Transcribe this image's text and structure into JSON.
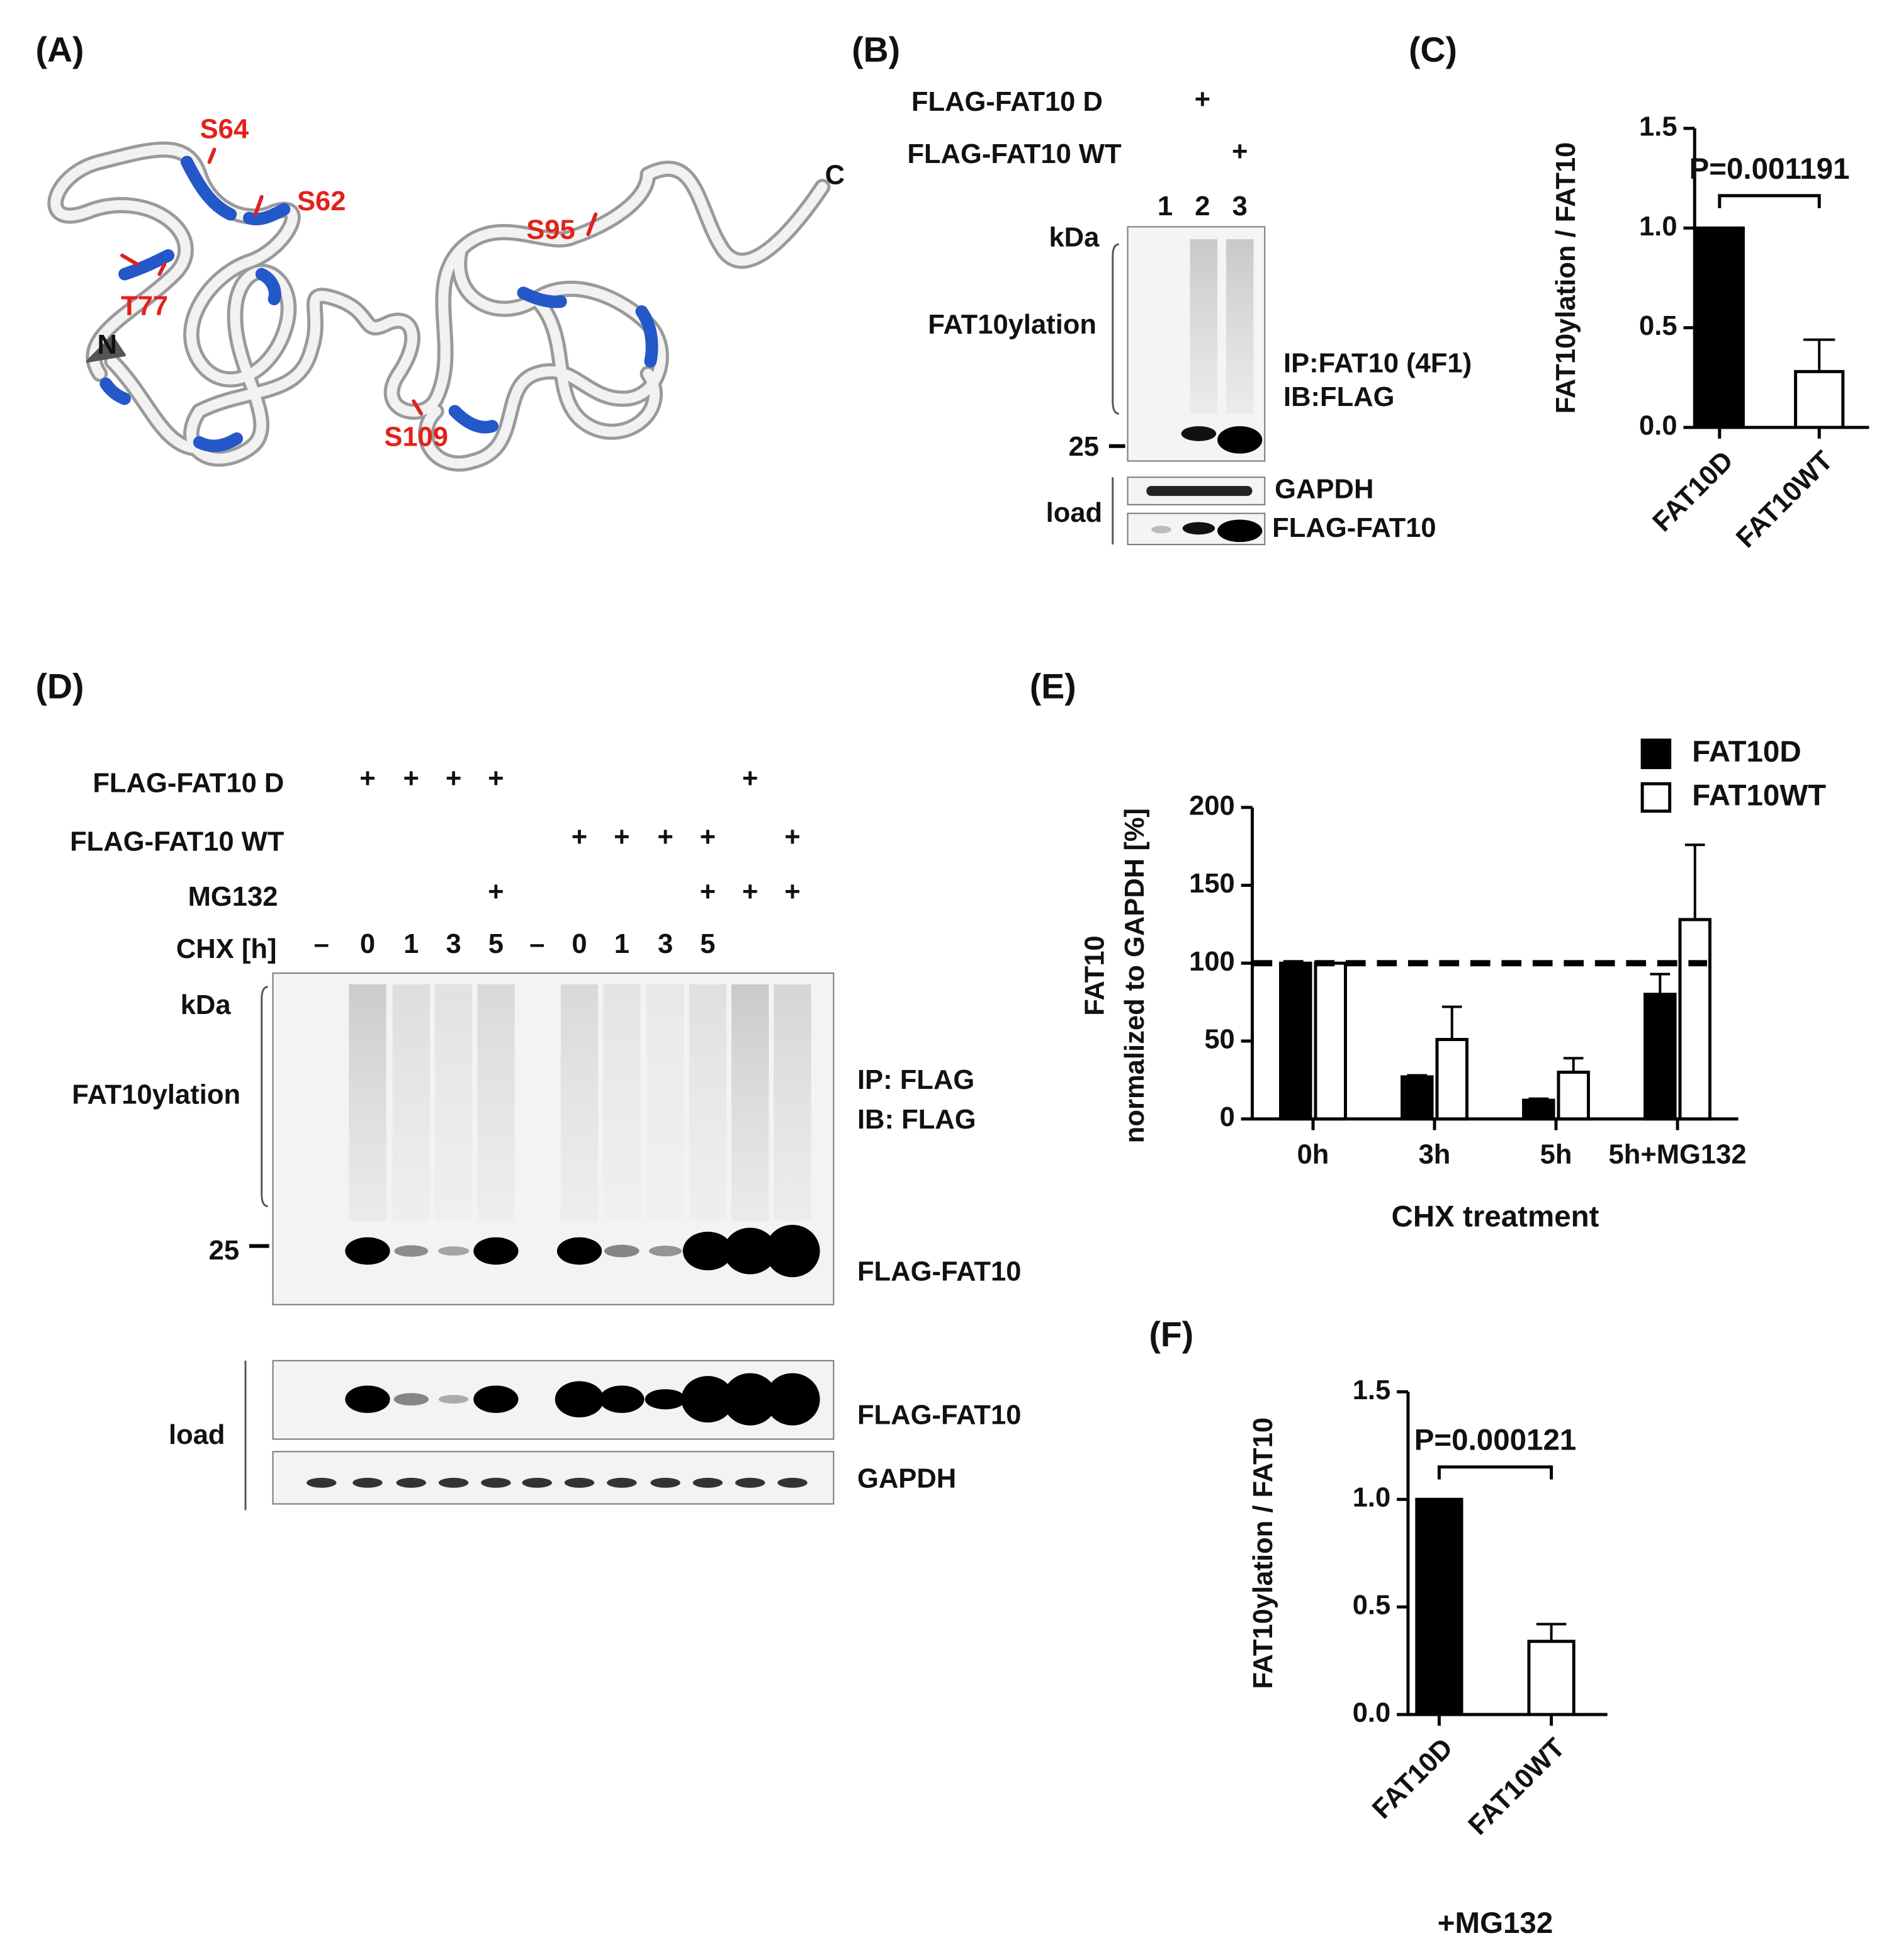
{
  "panel_labels": [
    "(A)",
    "(B)",
    "(C)",
    "(D)",
    "(E)",
    "(F)"
  ],
  "structure": {
    "residues": [
      "S64",
      "S62",
      "T77",
      "S95",
      "S109"
    ],
    "termini": [
      "N",
      "C"
    ]
  },
  "blot_b": {
    "rows": [
      {
        "label": "FLAG-FAT10 D",
        "marks": [
          null,
          "+",
          null
        ]
      },
      {
        "label": "FLAG-FAT10 WT",
        "marks": [
          null,
          null,
          "+"
        ]
      }
    ],
    "lanes": [
      "1",
      "2",
      "3"
    ],
    "kda": "kDa",
    "fat10ylation": "FAT10ylation",
    "marker": "25",
    "ip": "IP:FAT10 (4F1)",
    "ib": "IB:FLAG",
    "gapdh": "GAPDH",
    "load": "load",
    "flag_fat10": "FLAG-FAT10"
  },
  "blot_d": {
    "rows": [
      {
        "label": "FLAG-FAT10 D",
        "marks": [
          null,
          "+",
          "+",
          "+",
          "+",
          null,
          null,
          null,
          null,
          null,
          "+",
          null
        ]
      },
      {
        "label": "FLAG-FAT10 WT",
        "marks": [
          null,
          null,
          null,
          null,
          null,
          null,
          "+",
          "+",
          "+",
          "+",
          null,
          "+"
        ]
      },
      {
        "label": "MG132",
        "marks": [
          null,
          null,
          null,
          null,
          "+",
          null,
          null,
          null,
          null,
          "+",
          "+",
          "+"
        ]
      },
      {
        "label": "CHX [h]",
        "marks": [
          "–",
          "0",
          "1",
          "3",
          "5",
          "–",
          "0",
          "1",
          "3",
          "5",
          null,
          null
        ]
      }
    ],
    "kda": "kDa",
    "fat10ylation": "FAT10ylation",
    "marker": "25",
    "ip": "IP: FLAG",
    "ib": "IB: FLAG",
    "flag_fat10": "FLAG-FAT10",
    "flag_fat10_load": "FLAG-FAT10",
    "gapdh": "GAPDH",
    "load": "load"
  },
  "chart_data": [
    {
      "type": "bar",
      "ylabel": "FAT10ylation / FAT10",
      "categories": [
        "FAT10D",
        "FAT10WT"
      ],
      "values": [
        1.0,
        0.28
      ],
      "errors": [
        0,
        0.16
      ],
      "colors": [
        "#000000",
        "#ffffff"
      ],
      "ylim": [
        0,
        1.5
      ],
      "yticks": [
        {
          "value": 0,
          "label": "0.0"
        },
        0.5,
        {
          "value": 1,
          "label": "1.0"
        },
        1.5
      ],
      "annotation": "P=0.001191"
    },
    {
      "type": "grouped_bar",
      "ylabel": [
        "FAT10",
        "normalized to GAPDH [%]"
      ],
      "xlabel": "CHX treatment",
      "categories": [
        "0h",
        "3h",
        "5h",
        "5h+MG132"
      ],
      "series": [
        {
          "name": "FAT10D",
          "color": "#000000",
          "values": [
            100,
            27,
            12,
            80
          ],
          "errors": [
            0,
            1,
            1,
            13
          ]
        },
        {
          "name": "FAT10WT",
          "color": "#ffffff",
          "values": [
            100,
            51,
            30,
            128
          ],
          "errors": [
            0,
            21,
            9,
            48
          ]
        }
      ],
      "ylim": [
        0,
        200
      ],
      "yticks": [
        0,
        50,
        100,
        150,
        200
      ],
      "reference_line": 100,
      "legend": "top-right"
    },
    {
      "type": "bar",
      "ylabel": "FAT10ylation / FAT10",
      "categories": [
        "FAT10D",
        "FAT10WT"
      ],
      "values": [
        1.0,
        0.34
      ],
      "errors": [
        0,
        0.08
      ],
      "colors": [
        "#000000",
        "#ffffff"
      ],
      "ylim": [
        0,
        1.5
      ],
      "yticks": [
        {
          "value": 0,
          "label": "0.0"
        },
        0.5,
        {
          "value": 1,
          "label": "1.0"
        },
        1.5
      ],
      "annotation": "P=0.000121",
      "footnote": "+MG132"
    }
  ]
}
